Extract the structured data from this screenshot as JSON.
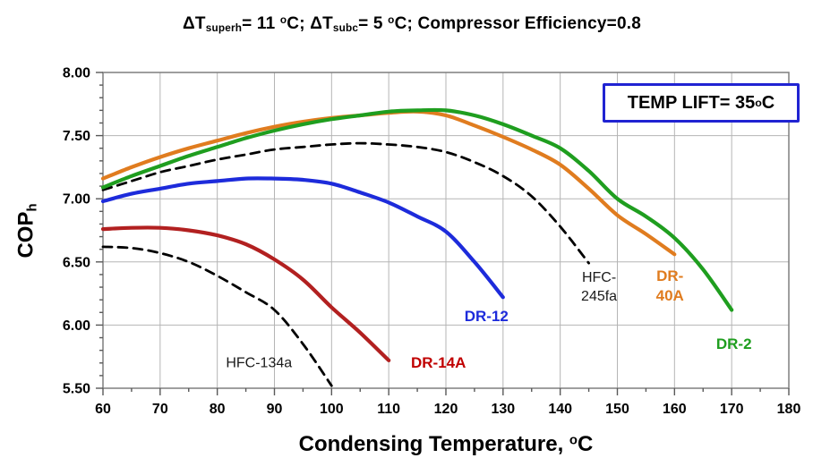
{
  "chart_data": {
    "type": "line",
    "title": "ΔT_superh= 11 °C; ΔT_subc= 5 °C; Compressor Efficiency=0.8",
    "xlabel": "Condensing Temperature, °C",
    "ylabel": "COP_h",
    "xlim": [
      60,
      180
    ],
    "ylim": [
      5.5,
      8.0
    ],
    "x_tick_step": 10,
    "x_minor_step": 5,
    "y_tick_step": 0.5,
    "y_minor_step": 0.1,
    "grid": true,
    "grid_color": "#B5B5B5",
    "frame_color": "#7F7F7F",
    "tick_color": "#595959",
    "title_rich": [
      {
        "t": "ΔT"
      },
      {
        "t": "superh",
        "s": "sub"
      },
      {
        "t": "= 11 "
      },
      {
        "t": "o",
        "s": "sup"
      },
      {
        "t": "C; ΔT"
      },
      {
        "t": "subc",
        "s": "sub"
      },
      {
        "t": "= 5 "
      },
      {
        "t": "o",
        "s": "sup"
      },
      {
        "t": "C; Compressor Efficiency=0.8"
      }
    ],
    "xlabel_rich": [
      {
        "t": "Condensing Temperature, "
      },
      {
        "t": "o",
        "s": "sup"
      },
      {
        "t": "C"
      }
    ],
    "ylabel_rich": [
      {
        "t": "COP"
      },
      {
        "t": "h",
        "s": "sub"
      }
    ],
    "temp_lift_box": {
      "text": "TEMP LIFT= 35 °C",
      "text_rich": [
        {
          "t": "TEMP LIFT= 35 "
        },
        {
          "t": "o",
          "s": "sup"
        },
        {
          "t": "C"
        }
      ],
      "border_color": "#2023D2"
    },
    "series": [
      {
        "name": "HFC-134a",
        "style": "dashed",
        "color": "#000000",
        "x": [
          60,
          65,
          70,
          75,
          80,
          85,
          90,
          95,
          100
        ],
        "y": [
          6.62,
          6.61,
          6.57,
          6.5,
          6.39,
          6.26,
          6.12,
          5.85,
          5.52
        ],
        "label": {
          "text": "HFC-134a",
          "color": "#1A1A1A",
          "bold": false,
          "size": 16,
          "x": 87.3,
          "y": 5.69
        }
      },
      {
        "name": "HFC-245fa",
        "style": "dashed",
        "color": "#000000",
        "x": [
          60,
          65,
          70,
          75,
          80,
          85,
          90,
          95,
          100,
          105,
          110,
          115,
          120,
          125,
          130,
          135,
          140,
          145
        ],
        "y": [
          7.07,
          7.14,
          7.21,
          7.26,
          7.31,
          7.35,
          7.39,
          7.41,
          7.43,
          7.44,
          7.43,
          7.41,
          7.37,
          7.29,
          7.18,
          7.02,
          6.78,
          6.49
        ],
        "label": {
          "text": "HFC-\n245fa",
          "color": "#1A1A1A",
          "bold": false,
          "size": 16,
          "x": 146.8,
          "y": 6.29
        }
      },
      {
        "name": "DR-14A",
        "style": "solid",
        "color": "#B22020",
        "x": [
          60,
          65,
          70,
          75,
          80,
          85,
          90,
          95,
          100,
          105,
          110
        ],
        "y": [
          6.76,
          6.77,
          6.77,
          6.75,
          6.71,
          6.64,
          6.52,
          6.36,
          6.14,
          5.94,
          5.72
        ],
        "label": {
          "text": "DR-14A",
          "color": "#C00000",
          "bold": true,
          "size": 17,
          "x": 118.7,
          "y": 5.7
        }
      },
      {
        "name": "DR-12",
        "style": "solid",
        "color": "#1D2BDB",
        "x": [
          60,
          65,
          70,
          75,
          80,
          85,
          90,
          95,
          100,
          105,
          110,
          115,
          120,
          125,
          130
        ],
        "y": [
          6.98,
          7.04,
          7.08,
          7.12,
          7.14,
          7.16,
          7.16,
          7.15,
          7.12,
          7.05,
          6.97,
          6.86,
          6.74,
          6.5,
          6.22
        ],
        "label": {
          "text": "DR-12",
          "color": "#1D2BDB",
          "bold": true,
          "size": 17,
          "x": 127.1,
          "y": 6.07
        }
      },
      {
        "name": "DR-40A",
        "style": "solid",
        "color": "#E07C1F",
        "x": [
          60,
          65,
          70,
          75,
          80,
          85,
          90,
          95,
          100,
          105,
          110,
          115,
          120,
          125,
          130,
          135,
          140,
          145,
          150,
          155,
          160
        ],
        "y": [
          7.16,
          7.25,
          7.33,
          7.4,
          7.46,
          7.52,
          7.57,
          7.61,
          7.64,
          7.66,
          7.68,
          7.69,
          7.66,
          7.58,
          7.49,
          7.39,
          7.27,
          7.08,
          6.87,
          6.72,
          6.56
        ],
        "label": {
          "text": "DR-\n40A",
          "color": "#E07C1F",
          "bold": true,
          "size": 17,
          "x": 159.2,
          "y": 6.31
        }
      },
      {
        "name": "DR-2",
        "style": "solid",
        "color": "#1F9E1F",
        "x": [
          60,
          65,
          70,
          75,
          80,
          85,
          90,
          95,
          100,
          105,
          110,
          115,
          120,
          125,
          130,
          135,
          140,
          145,
          150,
          155,
          160,
          165,
          170
        ],
        "y": [
          7.09,
          7.18,
          7.26,
          7.34,
          7.41,
          7.48,
          7.54,
          7.59,
          7.63,
          7.66,
          7.69,
          7.7,
          7.7,
          7.66,
          7.59,
          7.5,
          7.4,
          7.22,
          7.0,
          6.86,
          6.69,
          6.44,
          6.12
        ],
        "label": {
          "text": "DR-2",
          "color": "#1F9E1F",
          "bold": true,
          "size": 17,
          "x": 170.4,
          "y": 5.85
        }
      }
    ]
  }
}
